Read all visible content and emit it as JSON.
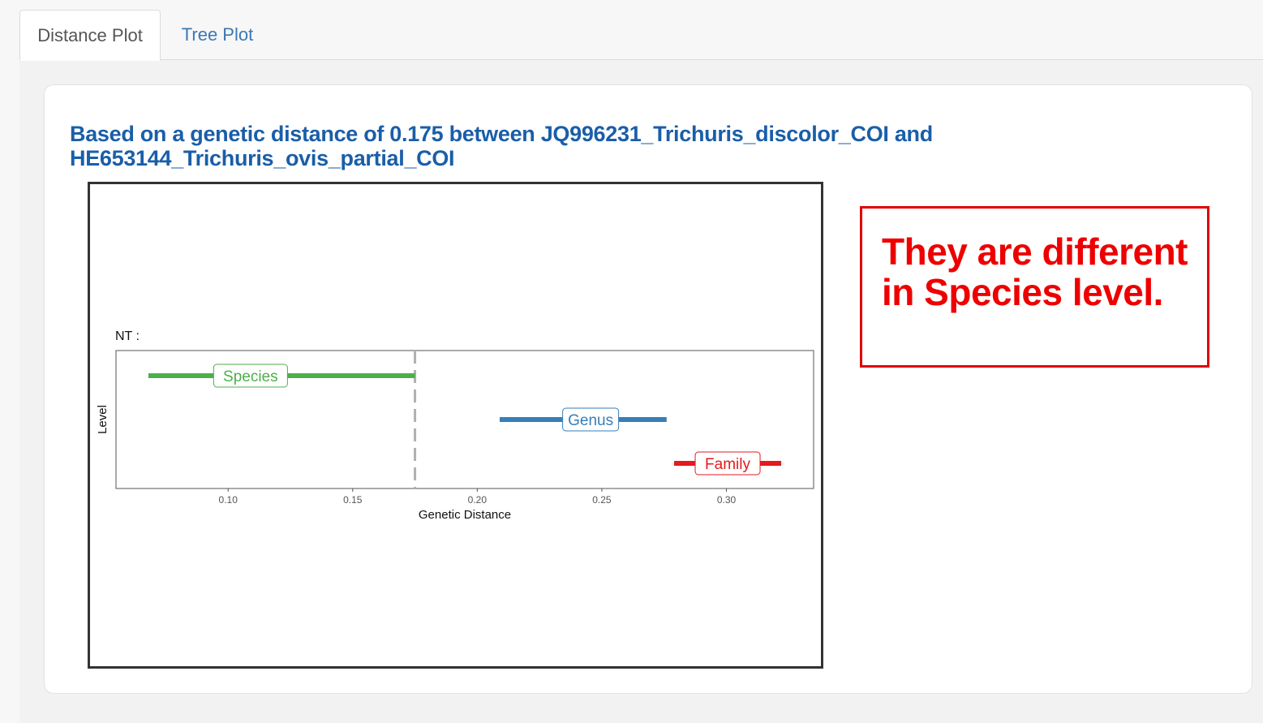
{
  "tabs": [
    {
      "label": "Distance Plot",
      "active": true
    },
    {
      "label": "Tree Plot",
      "active": false
    }
  ],
  "heading": "Based on a genetic distance of 0.175 between JQ996231_Trichuris_discolor_COI and HE653144_Trichuris_ovis_partial_COI",
  "verdict": "They are different in Species level.",
  "colors": {
    "heading": "#1a5ea8",
    "tab_link": "#3b78b5",
    "verdict": "#ee0000",
    "species": "#4daf4a",
    "genus": "#377eb8",
    "family": "#e41a1c",
    "threshold_line": "#b0b0b0"
  },
  "chart_data": {
    "type": "range",
    "panel_label": "NT :",
    "xlabel": "Genetic Distance",
    "ylabel": "Level",
    "xlim": [
      0.055,
      0.335
    ],
    "xticks": [
      0.1,
      0.15,
      0.2,
      0.25,
      0.3
    ],
    "xtick_labels": [
      "0.10",
      "0.15",
      "0.20",
      "0.25",
      "0.30"
    ],
    "threshold": 0.175,
    "series": [
      {
        "name": "Species",
        "min": 0.068,
        "max": 0.175,
        "label_x": 0.109,
        "color": "#4daf4a"
      },
      {
        "name": "Genus",
        "min": 0.209,
        "max": 0.276,
        "label_x": 0.2455,
        "color": "#377eb8"
      },
      {
        "name": "Family",
        "min": 0.279,
        "max": 0.322,
        "label_x": 0.3005,
        "color": "#e41a1c"
      }
    ]
  }
}
